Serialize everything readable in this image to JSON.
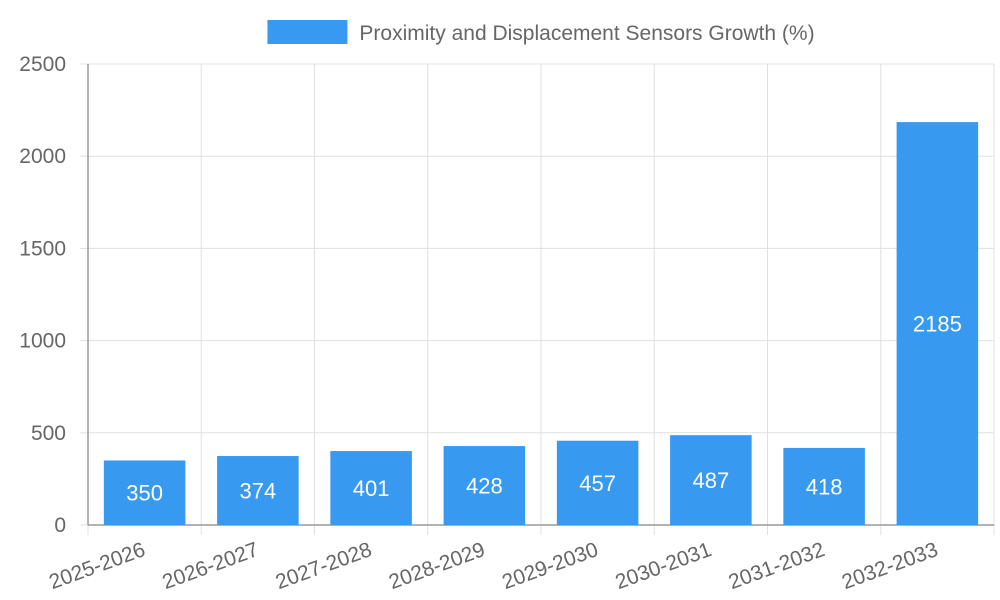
{
  "chart_data": {
    "type": "bar",
    "categories": [
      "2025-2026",
      "2026-2027",
      "2027-2028",
      "2028-2029",
      "2029-2030",
      "2030-2031",
      "2031-2032",
      "2032-2033"
    ],
    "series": [
      {
        "name": "Proximity and Displacement Sensors Growth (%)",
        "values": [
          350,
          374,
          401,
          428,
          457,
          487,
          418,
          2185
        ],
        "color": "#3799f0"
      }
    ],
    "data_labels": [
      "350",
      "374",
      "401",
      "428",
      "457",
      "487",
      "418",
      "2185"
    ],
    "y_ticks": [
      "0",
      "500",
      "1000",
      "1500",
      "2000",
      "2500"
    ],
    "ylim": [
      0,
      2500
    ],
    "grid": true,
    "legend_position": "top-center",
    "colors": {
      "grid": "#e0e0e0",
      "axis": "#999999",
      "text": "#666666",
      "bar_label": "#ffffff"
    }
  }
}
